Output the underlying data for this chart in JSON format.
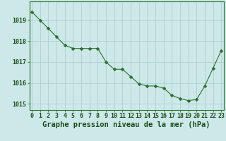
{
  "x": [
    0,
    1,
    2,
    3,
    4,
    5,
    6,
    7,
    8,
    9,
    10,
    11,
    12,
    13,
    14,
    15,
    16,
    17,
    18,
    19,
    20,
    21,
    22,
    23
  ],
  "y": [
    1019.4,
    1019.0,
    1018.6,
    1018.2,
    1017.8,
    1017.65,
    1017.65,
    1017.65,
    1017.65,
    1017.0,
    1016.65,
    1016.65,
    1016.3,
    1015.95,
    1015.85,
    1015.85,
    1015.75,
    1015.4,
    1015.25,
    1015.15,
    1015.2,
    1015.85,
    1016.7,
    1017.55
  ],
  "line_color": "#2d6e2d",
  "marker": "D",
  "marker_size": 2.5,
  "bg_color": "#cce8e8",
  "grid_color": "#aacaca",
  "xlabel": "Graphe pression niveau de la mer (hPa)",
  "xlabel_color": "#1a4d1a",
  "xlabel_fontsize": 7.5,
  "tick_color": "#1a4d1a",
  "tick_fontsize": 6,
  "ylim": [
    1014.7,
    1019.9
  ],
  "yticks": [
    1015,
    1016,
    1017,
    1018,
    1019
  ],
  "xticks": [
    0,
    1,
    2,
    3,
    4,
    5,
    6,
    7,
    8,
    9,
    10,
    11,
    12,
    13,
    14,
    15,
    16,
    17,
    18,
    19,
    20,
    21,
    22,
    23
  ],
  "spine_color": "#2d6e2d",
  "xlim": [
    -0.3,
    23.3
  ]
}
